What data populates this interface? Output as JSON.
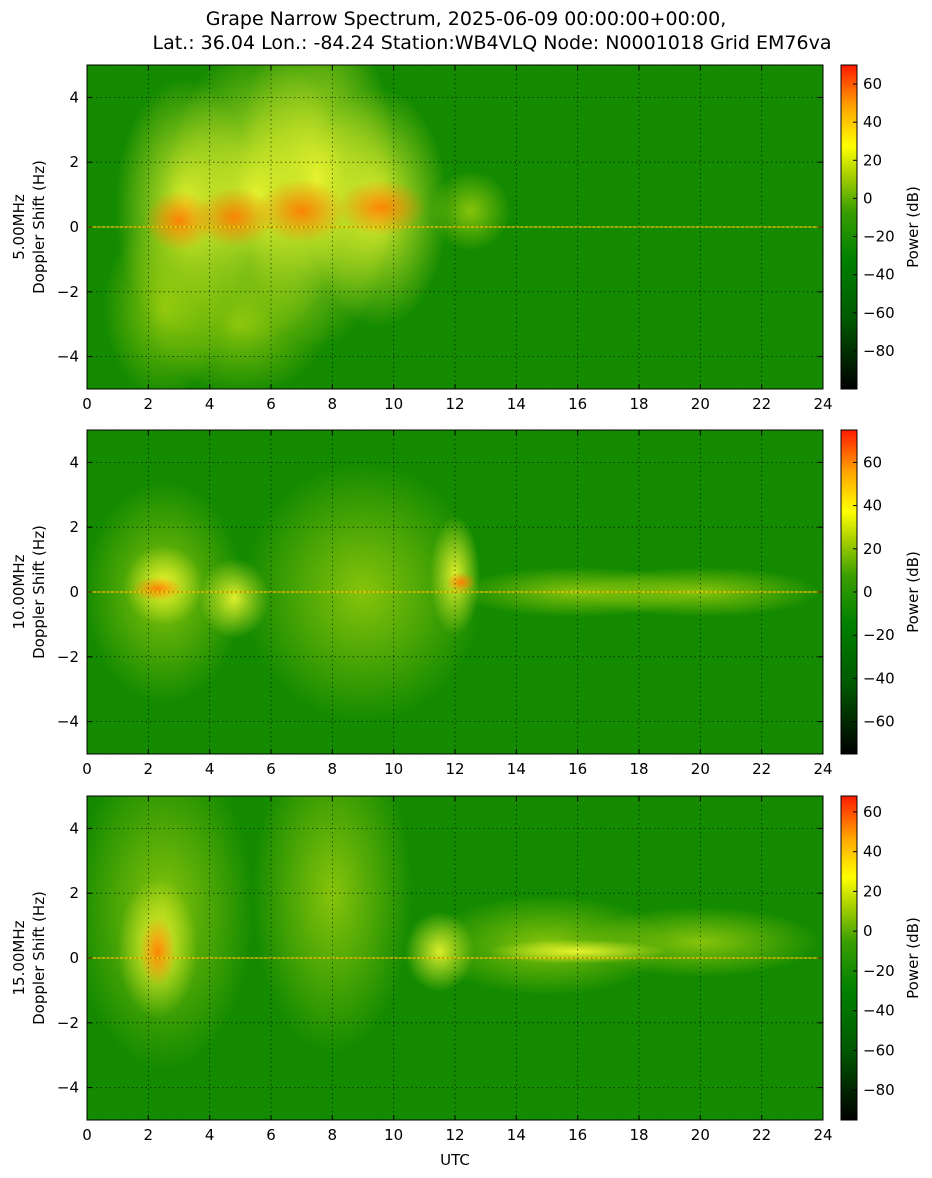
{
  "title_line1": "Grape Narrow Spectrum, 2025-06-09 00:00:00+00:00,",
  "title_line2": "Lat.: 36.04 Lon.: -84.24 Station:WB4VLQ Node: N0001018 Grid EM76va",
  "colors": {
    "colormap": [
      "#000000",
      "#006400",
      "#008000",
      "#2e9a00",
      "#9acd00",
      "#ffff00",
      "#ffa500",
      "#ff0000"
    ],
    "grid": "#000000"
  },
  "chart_data": [
    {
      "type": "heatmap",
      "freq_label": "5.00MHz",
      "ylabel": "Doppler Shift (Hz)",
      "xlabel": "",
      "colorbar_label": "Power (dB)",
      "xlim": [
        0,
        24
      ],
      "ylim": [
        -5,
        5
      ],
      "x_ticks": [
        "0",
        "2",
        "4",
        "6",
        "8",
        "10",
        "12",
        "14",
        "16",
        "18",
        "20",
        "22",
        "24"
      ],
      "y_ticks": [
        "−4",
        "−2",
        "0",
        "2",
        "4"
      ],
      "cbar_range": [
        -100,
        70
      ],
      "cbar_ticks": [
        "60",
        "40",
        "20",
        "0",
        "−20",
        "−40",
        "−60",
        "−80"
      ],
      "cbar_tick_values": [
        60,
        40,
        20,
        0,
        -20,
        -40,
        -60,
        -80
      ],
      "grid": true
    },
    {
      "type": "heatmap",
      "freq_label": "10.00MHz",
      "ylabel": "Doppler Shift (Hz)",
      "xlabel": "",
      "colorbar_label": "Power (dB)",
      "xlim": [
        0,
        24
      ],
      "ylim": [
        -5,
        5
      ],
      "x_ticks": [
        "0",
        "2",
        "4",
        "6",
        "8",
        "10",
        "12",
        "14",
        "16",
        "18",
        "20",
        "22",
        "24"
      ],
      "y_ticks": [
        "−4",
        "−2",
        "0",
        "2",
        "4"
      ],
      "cbar_range": [
        -75,
        75
      ],
      "cbar_ticks": [
        "60",
        "40",
        "20",
        "0",
        "−20",
        "−40",
        "−60"
      ],
      "cbar_tick_values": [
        60,
        40,
        20,
        0,
        -20,
        -40,
        -60
      ],
      "grid": true
    },
    {
      "type": "heatmap",
      "freq_label": "15.00MHz",
      "ylabel": "Doppler Shift (Hz)",
      "xlabel": "UTC",
      "colorbar_label": "Power (dB)",
      "xlim": [
        0,
        24
      ],
      "ylim": [
        -5,
        5
      ],
      "x_ticks": [
        "0",
        "2",
        "4",
        "6",
        "8",
        "10",
        "12",
        "14",
        "16",
        "18",
        "20",
        "22",
        "24"
      ],
      "y_ticks": [
        "−4",
        "−2",
        "0",
        "2",
        "4"
      ],
      "cbar_range": [
        -95,
        68
      ],
      "cbar_ticks": [
        "60",
        "40",
        "20",
        "0",
        "−20",
        "−40",
        "−60",
        "−80"
      ],
      "cbar_tick_values": [
        60,
        40,
        20,
        0,
        -20,
        -40,
        -60,
        -80
      ],
      "grid": true
    }
  ]
}
